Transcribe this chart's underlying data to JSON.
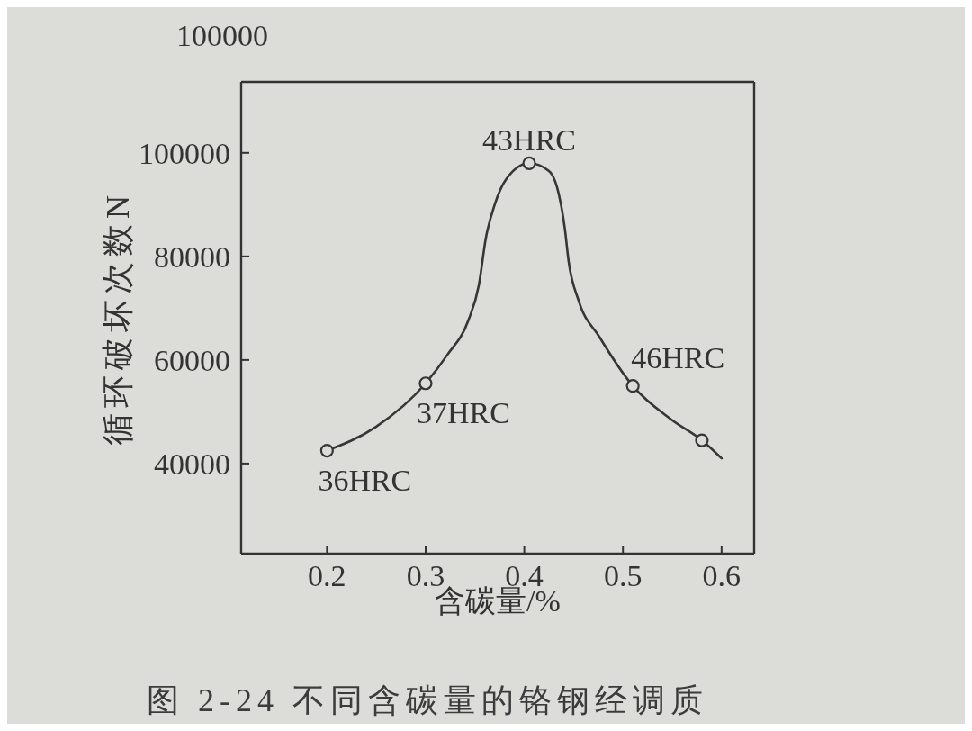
{
  "chart_data": {
    "type": "line",
    "title": "图 2-24 不同含碳量的铬钢经调质",
    "xlabel": "含碳量/%",
    "ylabel": "循环破坏次数N",
    "xlim": [
      0.113,
      0.633
    ],
    "xticks": [
      0.2,
      0.3,
      0.4,
      0.5,
      0.6
    ],
    "ylim": [
      22600,
      113700
    ],
    "yticks": [
      40000,
      60000,
      80000,
      100000
    ],
    "series": [
      {
        "color": "#363636",
        "marker": "none",
        "line_style": "solid",
        "x": [
          0.2,
          0.249,
          0.3,
          0.322,
          0.343,
          0.354,
          0.361,
          0.37,
          0.382,
          0.405,
          0.425,
          0.435,
          0.441,
          0.445,
          0.455,
          0.476,
          0.51,
          0.549,
          0.58,
          0.6
        ],
        "values": [
          42500,
          47000,
          55500,
          61000,
          67500,
          74500,
          83500,
          90000,
          95000,
          98000,
          96500,
          92000,
          85500,
          79000,
          71500,
          64500,
          55000,
          48500,
          44500,
          41000
        ]
      },
      {
        "type": "scatter",
        "color": "#363636",
        "marker": "circle",
        "x": [
          0.2,
          0.3,
          0.405,
          0.51,
          0.58
        ],
        "values": [
          42500,
          55500,
          98000,
          55000,
          44500
        ]
      }
    ],
    "annotations": [
      "100000",
      {
        "text": "36HRC",
        "x": 0.2,
        "y": 42500
      },
      {
        "text": "37HRC",
        "x": 0.3,
        "y": 55500
      },
      {
        "text": "43HRC",
        "x": 0.405,
        "y": 98000
      },
      {
        "text": "46HRC",
        "x": 0.51,
        "y": 55000
      }
    ]
  }
}
